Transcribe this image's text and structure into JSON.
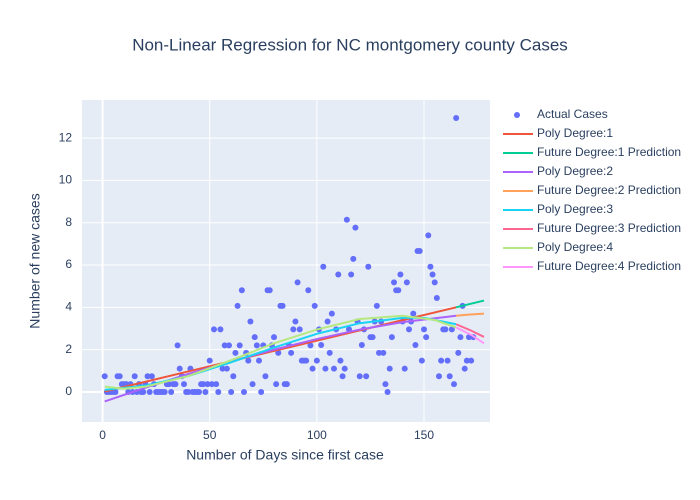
{
  "chart_data": {
    "type": "scatter",
    "title": "Non-Linear Regression for NC montgomery county Cases",
    "x_label": "Number of Days since first case",
    "y_label": "Number of new cases",
    "xlim": [
      -9.6,
      180.8
    ],
    "ylim": [
      -1.42,
      13.8
    ],
    "xticks": [
      0,
      50,
      100,
      150
    ],
    "yticks": [
      0,
      2,
      4,
      6,
      8,
      10,
      12
    ],
    "grid": true,
    "legend": "right",
    "series": [
      {
        "name": "Actual Cases",
        "color": "#636efa",
        "mode": "markers",
        "x": [
          1,
          2,
          3,
          4,
          5,
          6,
          7,
          8,
          9,
          10,
          11,
          12,
          13,
          14,
          15,
          16,
          17,
          18,
          19,
          20,
          21,
          22,
          23,
          24,
          25,
          26,
          27,
          28,
          29,
          30,
          31,
          32,
          33,
          34,
          35,
          36,
          37,
          38,
          39,
          40,
          41,
          42,
          43,
          44,
          45,
          46,
          47,
          48,
          49,
          50,
          51,
          52,
          53,
          54,
          55,
          56,
          57,
          58,
          59,
          60,
          61,
          62,
          63,
          64,
          65,
          66,
          67,
          68,
          69,
          70,
          71,
          72,
          73,
          74,
          75,
          76,
          77,
          78,
          79,
          80,
          81,
          82,
          83,
          84,
          85,
          86,
          87,
          88,
          89,
          90,
          91,
          92,
          93,
          94,
          95,
          96,
          97,
          98,
          99,
          100,
          101,
          102,
          103,
          104,
          105,
          106,
          107,
          108,
          109,
          110,
          111,
          112,
          113,
          114,
          115,
          116,
          117,
          118,
          119,
          120,
          121,
          122,
          123,
          124,
          125,
          126,
          127,
          128,
          129,
          130,
          131,
          132,
          133,
          134,
          135,
          136,
          137,
          138,
          139,
          140,
          141,
          142,
          143,
          144,
          145,
          146,
          147,
          148,
          149,
          150,
          151,
          152,
          153,
          154,
          155,
          156,
          157,
          158,
          159,
          160,
          161,
          162,
          163,
          164,
          165,
          166,
          167,
          168,
          169,
          170,
          171,
          172,
          173
        ],
        "values": [
          0.74,
          0,
          0,
          0,
          0,
          0,
          0.74,
          0.74,
          0.37,
          0.37,
          0.37,
          0,
          0.37,
          0,
          0.74,
          0,
          0.37,
          0,
          0,
          0.37,
          0.74,
          0,
          0.74,
          0.37,
          0,
          0,
          0,
          0,
          0,
          0.37,
          0.37,
          0,
          0.37,
          0.37,
          2.2,
          1.1,
          0.74,
          0.37,
          0,
          0,
          1.1,
          0,
          0,
          0,
          0,
          0.37,
          0.37,
          0,
          0.37,
          1.48,
          0.37,
          2.96,
          0.37,
          0,
          2.96,
          1.1,
          2.2,
          1.1,
          2.2,
          0,
          0.74,
          1.85,
          4.07,
          2.2,
          4.81,
          0,
          1.85,
          1.48,
          3.33,
          0.37,
          2.59,
          2.2,
          1.48,
          0,
          2.2,
          0.74,
          4.81,
          4.81,
          2.2,
          2.59,
          0.37,
          1.85,
          4.07,
          4.07,
          0.37,
          0.37,
          2.2,
          1.85,
          2.96,
          3.33,
          5.18,
          2.96,
          1.48,
          1.48,
          1.48,
          4.81,
          2.2,
          1.1,
          4.07,
          1.48,
          2.96,
          2.22,
          5.92,
          1.1,
          3.33,
          1.85,
          3.7,
          1.1,
          2.96,
          5.55,
          1.48,
          0.74,
          1.1,
          8.14,
          2.96,
          5.55,
          6.29,
          7.77,
          3.33,
          0.74,
          2.22,
          2.96,
          0.74,
          5.92,
          2.59,
          2.59,
          3.33,
          4.07,
          1.85,
          3.33,
          1.85,
          0.37,
          0,
          1.1,
          2.59,
          5.18,
          4.81,
          4.81,
          5.55,
          3.33,
          1.1,
          5.18,
          2.96,
          3.33,
          3.7,
          2.22,
          6.66,
          6.66,
          1.48,
          2.96,
          2.59,
          7.4,
          5.92,
          5.55,
          5.18,
          4.44,
          0.74,
          1.48,
          2.96,
          2.96,
          1.48,
          0.74,
          2.96,
          0.37,
          12.95,
          1.85,
          2.59,
          4.07,
          1.1,
          1.48,
          2.59,
          1.48,
          2.59
        ]
      },
      {
        "name": "Poly Degree:1",
        "color": "#EF553B",
        "mode": "lines",
        "x": [
          1,
          40,
          80,
          120,
          165
        ],
        "values": [
          0.02,
          0.97,
          1.94,
          2.91,
          4.0
        ]
      },
      {
        "name": "Future Degree:1 Prediction",
        "color": "#00cc96",
        "mode": "lines",
        "x": [
          165,
          178
        ],
        "values": [
          4.0,
          4.32
        ]
      },
      {
        "name": "Poly Degree:2",
        "color": "#ab63fa",
        "mode": "lines",
        "x": [
          1,
          20,
          40,
          60,
          80,
          100,
          120,
          140,
          165
        ],
        "values": [
          -0.45,
          0.2,
          0.85,
          1.45,
          2.0,
          2.5,
          2.95,
          3.3,
          3.6
        ]
      },
      {
        "name": "Future Degree:2 Prediction",
        "color": "#FFA15A",
        "mode": "lines",
        "x": [
          165,
          170,
          178
        ],
        "values": [
          3.6,
          3.65,
          3.7
        ]
      },
      {
        "name": "Poly Degree:3",
        "color": "#19d3f3",
        "mode": "lines",
        "x": [
          1,
          20,
          40,
          60,
          80,
          100,
          120,
          140,
          150,
          165
        ],
        "values": [
          0.1,
          0.3,
          0.75,
          1.4,
          2.1,
          2.75,
          3.25,
          3.5,
          3.5,
          3.2
        ]
      },
      {
        "name": "Future Degree:3 Prediction",
        "color": "#FF6692",
        "mode": "lines",
        "x": [
          165,
          172,
          178
        ],
        "values": [
          3.2,
          2.9,
          2.6
        ]
      },
      {
        "name": "Poly Degree:4",
        "color": "#B6E880",
        "mode": "lines",
        "x": [
          1,
          10,
          20,
          40,
          60,
          80,
          100,
          120,
          140,
          155,
          165
        ],
        "values": [
          0.25,
          0.15,
          0.25,
          0.75,
          1.5,
          2.3,
          2.95,
          3.45,
          3.6,
          3.4,
          3.05
        ]
      },
      {
        "name": "Future Degree:4 Prediction",
        "color": "#FF97FF",
        "mode": "lines",
        "x": [
          165,
          172,
          178
        ],
        "values": [
          3.05,
          2.7,
          2.3
        ]
      }
    ]
  }
}
